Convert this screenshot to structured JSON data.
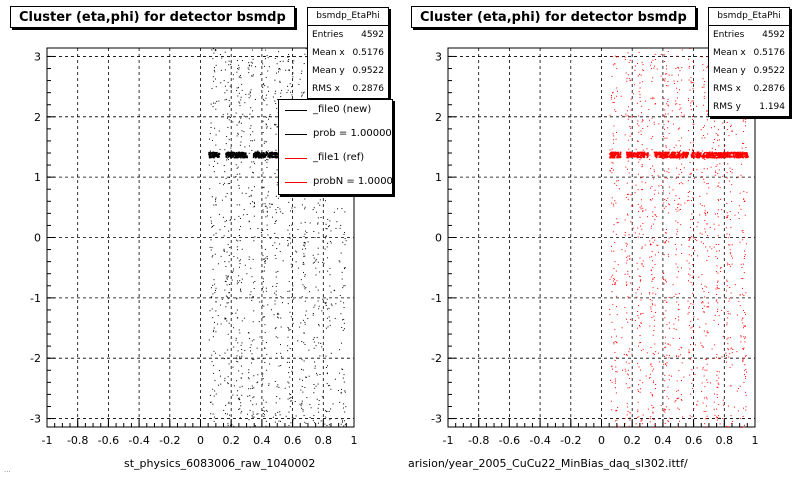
{
  "panels": [
    {
      "title": "Cluster (eta,phi) for detector bsmdp",
      "stats": {
        "name": "bsmdp_EtaPhi",
        "rows": [
          {
            "label": "Entries",
            "value": "4592"
          },
          {
            "label": "Mean x",
            "value": "0.5176"
          },
          {
            "label": "Mean y",
            "value": "0.9522"
          },
          {
            "label": "RMS x",
            "value": "0.2876"
          }
        ]
      },
      "footer": "st_physics_6083006_raw_1040002",
      "faint_footer": "...",
      "legend": [
        {
          "label": "_file0 (new)",
          "color": "#000000"
        },
        {
          "label": "prob = 1.000000",
          "color": "#000000"
        },
        {
          "label": "_file1 (ref)",
          "color": "#ff0000"
        },
        {
          "label": "probN = 1.000000",
          "color": "#ff0000"
        }
      ]
    },
    {
      "title": "Cluster (eta,phi) for detector bsmdp",
      "stats": {
        "name": "bsmdp_EtaPhi",
        "rows": [
          {
            "label": "Entries",
            "value": "4592"
          },
          {
            "label": "Mean x",
            "value": "0.5176"
          },
          {
            "label": "Mean y",
            "value": "0.9522"
          },
          {
            "label": "RMS x",
            "value": "0.2876"
          },
          {
            "label": "RMS y",
            "value": "1.194"
          }
        ]
      },
      "footer": "arision/year_2005_CuCu22_MinBias_daq_sl302.ittf/"
    }
  ],
  "chart_data": [
    {
      "type": "scatter",
      "title": "Cluster (eta,phi) for detector bsmdp",
      "xlabel": "",
      "ylabel": "",
      "xlim": [
        -1,
        1
      ],
      "ylim": [
        -3.14,
        3.14
      ],
      "xticks": [
        "-1",
        "-0.8",
        "-0.6",
        "-0.4",
        "-0.2",
        "0",
        "0.2",
        "0.4",
        "0.6",
        "0.8",
        "1"
      ],
      "yticks": [
        "-3",
        "-2",
        "-1",
        "0",
        "1",
        "2",
        "3"
      ],
      "grid": true,
      "point_color": "#000000",
      "x_range_of_points": [
        0.05,
        0.95
      ],
      "band_phi": 1.38,
      "entries": 4592
    },
    {
      "type": "scatter",
      "title": "Cluster (eta,phi) for detector bsmdp",
      "xlabel": "",
      "ylabel": "",
      "xlim": [
        -1,
        1
      ],
      "ylim": [
        -3.14,
        3.14
      ],
      "xticks": [
        "-1",
        "-0.8",
        "-0.6",
        "-0.4",
        "-0.2",
        "0",
        "0.2",
        "0.4",
        "0.6",
        "0.8",
        "1"
      ],
      "yticks": [
        "-3",
        "-2",
        "-1",
        "0",
        "1",
        "2",
        "3"
      ],
      "grid": true,
      "point_color": "#ff0000",
      "x_range_of_points": [
        0.05,
        0.95
      ],
      "band_phi": 1.38,
      "entries": 4592
    }
  ]
}
